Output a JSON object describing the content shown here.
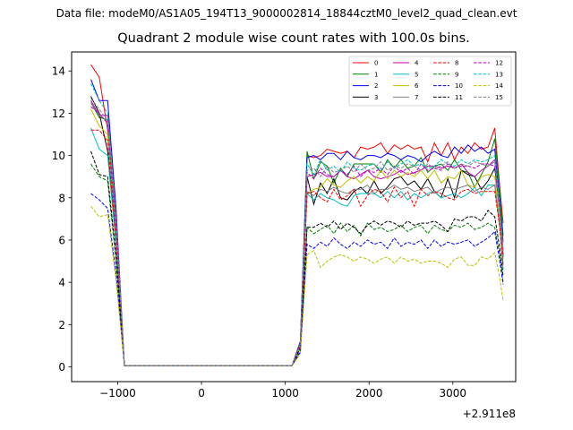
{
  "header": {
    "suptitle": "Data file: modeM0/AS1A05_194T13_9000002814_18844cztM0_level2_quad_clean.evt"
  },
  "chart_data": {
    "type": "line",
    "title": "Quadrant 2 module wise count rates with 100.0s bins.",
    "xlabel": "",
    "ylabel": "",
    "offset_text": "+2.911e8",
    "xlim": [
      -1550,
      3750
    ],
    "ylim": [
      -0.7,
      14.9
    ],
    "xticks": [
      -1000,
      0,
      1000,
      2000,
      3000
    ],
    "xtick_labels": [
      "−1000",
      "0",
      "1000",
      "2000",
      "3000"
    ],
    "yticks": [
      0,
      2,
      4,
      6,
      8,
      10,
      12,
      14
    ],
    "ytick_labels": [
      "0",
      "2",
      "4",
      "6",
      "8",
      "10",
      "12",
      "14"
    ],
    "grid": false,
    "legend": "top-right",
    "x": [
      -1320,
      -1220,
      -1120,
      -1020,
      -920,
      -820,
      -720,
      -620,
      -520,
      -420,
      -320,
      -220,
      -120,
      -20,
      80,
      180,
      280,
      380,
      480,
      580,
      680,
      780,
      880,
      980,
      1080,
      1180,
      1260,
      1340,
      1420,
      1500,
      1580,
      1660,
      1740,
      1820,
      1900,
      1980,
      2060,
      2140,
      2220,
      2300,
      2380,
      2460,
      2540,
      2620,
      2700,
      2780,
      2860,
      2940,
      3020,
      3100,
      3180,
      3260,
      3340,
      3420,
      3500,
      3560,
      3600
    ],
    "series": [
      {
        "name": "0",
        "color": "#ff0000",
        "dash": "solid",
        "values": [
          14.3,
          13.7,
          11.2,
          6.5,
          0.05,
          0.05,
          0.05,
          0.05,
          0.05,
          0.05,
          0.05,
          0.05,
          0.05,
          0.05,
          0.05,
          0.05,
          0.05,
          0.05,
          0.05,
          0.05,
          0.05,
          0.05,
          0.05,
          0.05,
          0.05,
          1.2,
          10.0,
          9.9,
          10.0,
          10.3,
          10.2,
          10.1,
          10.2,
          9.9,
          10.4,
          10.3,
          10.4,
          10.6,
          10.1,
          10.5,
          10.3,
          10.5,
          10.3,
          10.4,
          9.7,
          10.6,
          10.0,
          10.6,
          9.8,
          10.4,
          10.1,
          10.6,
          10.3,
          10.4,
          11.3,
          8.5,
          6.8
        ]
      },
      {
        "name": "1",
        "color": "#008000",
        "dash": "solid",
        "values": [
          12.5,
          11.8,
          11.7,
          6.0,
          0.05,
          0.05,
          0.05,
          0.05,
          0.05,
          0.05,
          0.05,
          0.05,
          0.05,
          0.05,
          0.05,
          0.05,
          0.05,
          0.05,
          0.05,
          0.05,
          0.05,
          0.05,
          0.05,
          0.05,
          0.05,
          1.1,
          10.2,
          8.9,
          9.7,
          9.5,
          8.7,
          9.4,
          9.0,
          9.6,
          9.6,
          9.6,
          9.6,
          9.2,
          9.8,
          9.4,
          9.8,
          9.4,
          9.5,
          9.9,
          9.2,
          9.5,
          9.6,
          9.3,
          9.8,
          9.3,
          9.2,
          8.5,
          9.1,
          9.7,
          10.8,
          8.3,
          6.2
        ]
      },
      {
        "name": "2",
        "color": "#0000ff",
        "dash": "solid",
        "values": [
          13.6,
          12.6,
          12.6,
          7.5,
          0.05,
          0.05,
          0.05,
          0.05,
          0.05,
          0.05,
          0.05,
          0.05,
          0.05,
          0.05,
          0.05,
          0.05,
          0.05,
          0.05,
          0.05,
          0.05,
          0.05,
          0.05,
          0.05,
          0.05,
          0.05,
          1.2,
          9.9,
          10.0,
          9.8,
          10.1,
          10.1,
          9.8,
          10.2,
          9.9,
          9.8,
          10.0,
          10.0,
          9.9,
          10.1,
          10.0,
          9.8,
          10.0,
          9.9,
          9.7,
          10.0,
          10.2,
          10.0,
          9.9,
          10.4,
          10.1,
          10.5,
          10.2,
          10.4,
          10.1,
          10.3,
          7.8,
          5.9
        ]
      },
      {
        "name": "3",
        "color": "#000000",
        "dash": "solid",
        "values": [
          12.8,
          12.0,
          10.2,
          6.0,
          0.05,
          0.05,
          0.05,
          0.05,
          0.05,
          0.05,
          0.05,
          0.05,
          0.05,
          0.05,
          0.05,
          0.05,
          0.05,
          0.05,
          0.05,
          0.05,
          0.05,
          0.05,
          0.05,
          0.05,
          0.05,
          1.0,
          9.0,
          7.7,
          8.7,
          8.2,
          8.9,
          8.0,
          7.9,
          8.3,
          8.5,
          8.2,
          8.8,
          8.2,
          8.5,
          8.9,
          9.0,
          8.6,
          8.8,
          8.4,
          8.9,
          8.3,
          8.0,
          8.9,
          8.0,
          9.3,
          9.1,
          9.0,
          8.4,
          8.8,
          9.4,
          7.5,
          5.2
        ]
      },
      {
        "name": "4",
        "color": "#bf00bf",
        "dash": "solid",
        "values": [
          12.6,
          11.9,
          11.9,
          7.0,
          0.05,
          0.05,
          0.05,
          0.05,
          0.05,
          0.05,
          0.05,
          0.05,
          0.05,
          0.05,
          0.05,
          0.05,
          0.05,
          0.05,
          0.05,
          0.05,
          0.05,
          0.05,
          0.05,
          0.05,
          0.05,
          1.1,
          9.0,
          9.1,
          9.2,
          9.0,
          9.0,
          9.3,
          9.0,
          8.9,
          9.1,
          9.3,
          9.0,
          8.9,
          9.0,
          9.1,
          9.3,
          9.1,
          9.2,
          9.3,
          9.5,
          9.5,
          9.4,
          9.5,
          9.4,
          9.6,
          9.2,
          9.0,
          9.3,
          9.5,
          9.8,
          7.5,
          5.5
        ]
      },
      {
        "name": "5",
        "color": "#00bfbf",
        "dash": "solid",
        "values": [
          11.3,
          10.3,
          10.0,
          5.8,
          0.05,
          0.05,
          0.05,
          0.05,
          0.05,
          0.05,
          0.05,
          0.05,
          0.05,
          0.05,
          0.05,
          0.05,
          0.05,
          0.05,
          0.05,
          0.05,
          0.05,
          0.05,
          0.05,
          0.05,
          0.05,
          1.0,
          8.2,
          7.9,
          8.2,
          8.0,
          7.9,
          7.7,
          7.6,
          8.1,
          8.2,
          8.2,
          8.2,
          8.0,
          8.3,
          8.0,
          8.3,
          7.9,
          8.2,
          8.0,
          8.2,
          8.3,
          8.0,
          8.1,
          8.2,
          8.0,
          8.2,
          8.5,
          8.1,
          8.6,
          8.6,
          6.8,
          4.6
        ]
      },
      {
        "name": "6",
        "color": "#bfbf00",
        "dash": "solid",
        "values": [
          12.2,
          11.4,
          11.0,
          6.2,
          0.05,
          0.05,
          0.05,
          0.05,
          0.05,
          0.05,
          0.05,
          0.05,
          0.05,
          0.05,
          0.05,
          0.05,
          0.05,
          0.05,
          0.05,
          0.05,
          0.05,
          0.05,
          0.05,
          0.05,
          0.05,
          1.0,
          8.2,
          8.4,
          8.5,
          8.9,
          8.6,
          8.5,
          8.8,
          9.0,
          8.7,
          9.0,
          8.8,
          9.3,
          8.9,
          9.3,
          9.0,
          9.2,
          9.0,
          9.3,
          8.9,
          9.3,
          8.7,
          9.0,
          8.9,
          9.3,
          8.6,
          8.5,
          9.0,
          9.1,
          9.0,
          7.0,
          5.0
        ]
      },
      {
        "name": "7",
        "color": "#808080",
        "dash": "solid",
        "values": [
          12.5,
          11.9,
          11.6,
          6.3,
          0.05,
          0.05,
          0.05,
          0.05,
          0.05,
          0.05,
          0.05,
          0.05,
          0.05,
          0.05,
          0.05,
          0.05,
          0.05,
          0.05,
          0.05,
          0.05,
          0.05,
          0.05,
          0.05,
          0.05,
          0.05,
          1.0,
          8.3,
          8.1,
          8.4,
          8.3,
          8.5,
          8.3,
          8.2,
          8.4,
          8.4,
          8.6,
          8.2,
          8.4,
          8.4,
          8.6,
          8.4,
          8.5,
          8.3,
          8.4,
          8.5,
          8.2,
          8.4,
          8.5,
          8.4,
          8.5,
          8.6,
          8.3,
          8.5,
          8.4,
          8.6,
          6.6,
          4.8
        ]
      },
      {
        "name": "8",
        "color": "#ff0000",
        "dash": "dashed",
        "values": [
          11.2,
          11.2,
          10.7,
          6.0,
          0.05,
          0.05,
          0.05,
          0.05,
          0.05,
          0.05,
          0.05,
          0.05,
          0.05,
          0.05,
          0.05,
          0.05,
          0.05,
          0.05,
          0.05,
          0.05,
          0.05,
          0.05,
          0.05,
          0.05,
          0.05,
          1.0,
          8.2,
          8.3,
          8.0,
          7.8,
          8.4,
          7.9,
          8.1,
          8.4,
          7.6,
          8.1,
          8.4,
          8.3,
          7.8,
          8.5,
          8.0,
          8.3,
          7.6,
          8.4,
          8.1,
          8.3,
          8.2,
          8.0,
          7.9,
          8.3,
          8.4,
          8.2,
          8.3,
          8.3,
          8.3,
          6.6,
          4.8
        ]
      },
      {
        "name": "9",
        "color": "#008000",
        "dash": "dashed",
        "values": [
          9.6,
          9.0,
          8.8,
          5.0,
          0.05,
          0.05,
          0.05,
          0.05,
          0.05,
          0.05,
          0.05,
          0.05,
          0.05,
          0.05,
          0.05,
          0.05,
          0.05,
          0.05,
          0.05,
          0.05,
          0.05,
          0.05,
          0.05,
          0.05,
          0.05,
          0.8,
          6.6,
          6.3,
          6.5,
          6.7,
          6.3,
          6.8,
          6.4,
          6.7,
          6.2,
          6.8,
          6.5,
          6.6,
          6.4,
          6.5,
          6.7,
          6.4,
          6.6,
          6.7,
          6.3,
          6.7,
          6.5,
          6.4,
          6.7,
          6.6,
          6.8,
          6.5,
          6.6,
          6.8,
          6.6,
          5.3,
          4.0
        ]
      },
      {
        "name": "10",
        "color": "#0000ff",
        "dash": "dashed",
        "values": [
          8.2,
          7.9,
          7.5,
          4.4,
          0.05,
          0.05,
          0.05,
          0.05,
          0.05,
          0.05,
          0.05,
          0.05,
          0.05,
          0.05,
          0.05,
          0.05,
          0.05,
          0.05,
          0.05,
          0.05,
          0.05,
          0.05,
          0.05,
          0.05,
          0.05,
          0.7,
          5.8,
          5.6,
          5.9,
          5.7,
          6.1,
          5.8,
          5.6,
          5.9,
          5.7,
          6.0,
          5.8,
          5.9,
          5.6,
          6.1,
          5.7,
          5.9,
          5.8,
          6.0,
          5.6,
          6.0,
          5.7,
          5.9,
          5.8,
          5.9,
          6.0,
          5.7,
          5.9,
          6.1,
          6.4,
          5.0,
          3.9
        ]
      },
      {
        "name": "11",
        "color": "#000000",
        "dash": "dashed",
        "values": [
          10.2,
          9.1,
          9.0,
          5.3,
          0.05,
          0.05,
          0.05,
          0.05,
          0.05,
          0.05,
          0.05,
          0.05,
          0.05,
          0.05,
          0.05,
          0.05,
          0.05,
          0.05,
          0.05,
          0.05,
          0.05,
          0.05,
          0.05,
          0.05,
          0.05,
          0.9,
          6.6,
          6.6,
          6.8,
          6.6,
          6.9,
          6.5,
          6.8,
          6.6,
          6.3,
          6.7,
          6.9,
          6.7,
          6.9,
          6.8,
          6.6,
          6.9,
          6.7,
          6.8,
          6.8,
          6.9,
          6.7,
          6.4,
          7.0,
          6.9,
          7.1,
          7.1,
          6.9,
          7.4,
          7.1,
          5.6,
          4.3
        ]
      },
      {
        "name": "12",
        "color": "#bf00bf",
        "dash": "dashed",
        "values": [
          12.3,
          12.0,
          11.5,
          6.5,
          0.05,
          0.05,
          0.05,
          0.05,
          0.05,
          0.05,
          0.05,
          0.05,
          0.05,
          0.05,
          0.05,
          0.05,
          0.05,
          0.05,
          0.05,
          0.05,
          0.05,
          0.05,
          0.05,
          0.05,
          0.05,
          1.1,
          9.2,
          8.9,
          9.4,
          9.1,
          9.0,
          9.3,
          9.1,
          9.5,
          9.0,
          9.3,
          9.2,
          9.4,
          9.1,
          9.5,
          9.2,
          9.4,
          9.1,
          9.6,
          9.3,
          9.4,
          9.3,
          9.6,
          9.4,
          9.5,
          9.5,
          9.4,
          9.6,
          9.6,
          9.5,
          7.3,
          5.3
        ]
      },
      {
        "name": "13",
        "color": "#00bfbf",
        "dash": "dashed",
        "values": [
          13.4,
          12.6,
          12.0,
          7.0,
          0.05,
          0.05,
          0.05,
          0.05,
          0.05,
          0.05,
          0.05,
          0.05,
          0.05,
          0.05,
          0.05,
          0.05,
          0.05,
          0.05,
          0.05,
          0.05,
          0.05,
          0.05,
          0.05,
          0.05,
          0.05,
          1.1,
          9.6,
          9.1,
          9.8,
          9.3,
          9.5,
          9.2,
          9.7,
          9.4,
          9.3,
          9.5,
          9.6,
          9.3,
          9.7,
          9.4,
          9.6,
          9.8,
          9.5,
          9.6,
          9.4,
          9.5,
          9.8,
          9.6,
          9.5,
          9.8,
          9.6,
          9.8,
          9.7,
          9.8,
          10.0,
          7.6,
          5.6
        ]
      },
      {
        "name": "14",
        "color": "#bfbf00",
        "dash": "dashed",
        "values": [
          7.6,
          7.1,
          7.2,
          4.1,
          0.05,
          0.05,
          0.05,
          0.05,
          0.05,
          0.05,
          0.05,
          0.05,
          0.05,
          0.05,
          0.05,
          0.05,
          0.05,
          0.05,
          0.05,
          0.05,
          0.05,
          0.05,
          0.05,
          0.05,
          0.05,
          0.6,
          5.3,
          5.5,
          4.7,
          5.0,
          5.2,
          5.3,
          5.2,
          5.0,
          5.2,
          5.1,
          4.9,
          5.1,
          5.2,
          4.9,
          5.2,
          5.0,
          5.1,
          4.9,
          5.0,
          5.0,
          4.9,
          4.7,
          5.1,
          5.2,
          4.8,
          4.8,
          5.2,
          5.1,
          5.4,
          4.2,
          3.1
        ]
      },
      {
        "name": "15",
        "color": "#808080",
        "dash": "dashed",
        "values": [
          12.7,
          12.2,
          11.6,
          6.8,
          0.05,
          0.05,
          0.05,
          0.05,
          0.05,
          0.05,
          0.05,
          0.05,
          0.05,
          0.05,
          0.05,
          0.05,
          0.05,
          0.05,
          0.05,
          0.05,
          0.05,
          0.05,
          0.05,
          0.05,
          0.05,
          1.1,
          9.3,
          9.4,
          9.0,
          9.5,
          9.2,
          9.3,
          9.5,
          9.2,
          9.6,
          9.3,
          9.4,
          9.7,
          9.3,
          9.5,
          9.4,
          9.6,
          9.5,
          9.3,
          9.6,
          9.4,
          9.5,
          9.7,
          9.4,
          9.6,
          9.5,
          9.7,
          9.6,
          9.5,
          9.7,
          7.4,
          5.4
        ]
      }
    ]
  }
}
